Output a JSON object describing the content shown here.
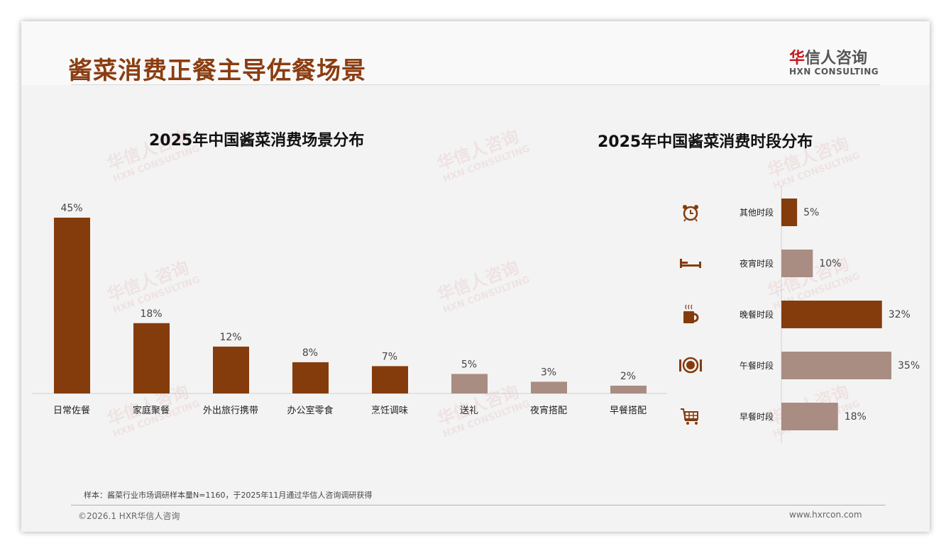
{
  "header": {
    "title": "酱菜消费正餐主导佐餐场景"
  },
  "logo": {
    "cn_red": "华",
    "cn_rest": "信人咨询",
    "en": "HXN CONSULTING"
  },
  "watermark": {
    "cn": "华信人咨询",
    "en": "HXN CONSULTING"
  },
  "colors": {
    "dark": "#843c0c",
    "light": "#a98c82",
    "title": "#8a3d10"
  },
  "chart_data": [
    {
      "type": "bar",
      "title": "2025年中国酱菜消费场景分布",
      "categories": [
        "日常佐餐",
        "家庭聚餐",
        "外出旅行携带",
        "办公室零食",
        "烹饪调味",
        "送礼",
        "夜宵搭配",
        "早餐搭配"
      ],
      "values": [
        45,
        18,
        12,
        8,
        7,
        5,
        3,
        2
      ],
      "labels": [
        "45%",
        "18%",
        "12%",
        "8%",
        "7%",
        "5%",
        "3%",
        "2%"
      ],
      "highlight": [
        true,
        true,
        true,
        true,
        true,
        false,
        false,
        false
      ],
      "xlabel": "",
      "ylabel": "",
      "ylim": [
        0,
        45
      ],
      "unit": "%"
    },
    {
      "type": "bar",
      "orientation": "horizontal",
      "title": "2025年中国酱菜消费时段分布",
      "categories": [
        "其他时段",
        "夜宵时段",
        "晚餐时段",
        "午餐时段",
        "早餐时段"
      ],
      "icons": [
        "alarm-clock-icon",
        "bed-icon",
        "coffee-cup-icon",
        "plate-cutlery-icon",
        "shopping-cart-icon"
      ],
      "values": [
        5,
        10,
        32,
        35,
        18
      ],
      "labels": [
        "5%",
        "10%",
        "32%",
        "35%",
        "18%"
      ],
      "highlight": [
        true,
        false,
        true,
        false,
        false
      ],
      "xlim": [
        0,
        35
      ],
      "unit": "%"
    }
  ],
  "footer": {
    "note": "样本：酱菜行业市场调研样本量N=1160，于2025年11月通过华信人咨询调研获得",
    "copyright": "©2026.1 HXR华信人咨询",
    "url": "www.hxrcon.com"
  }
}
